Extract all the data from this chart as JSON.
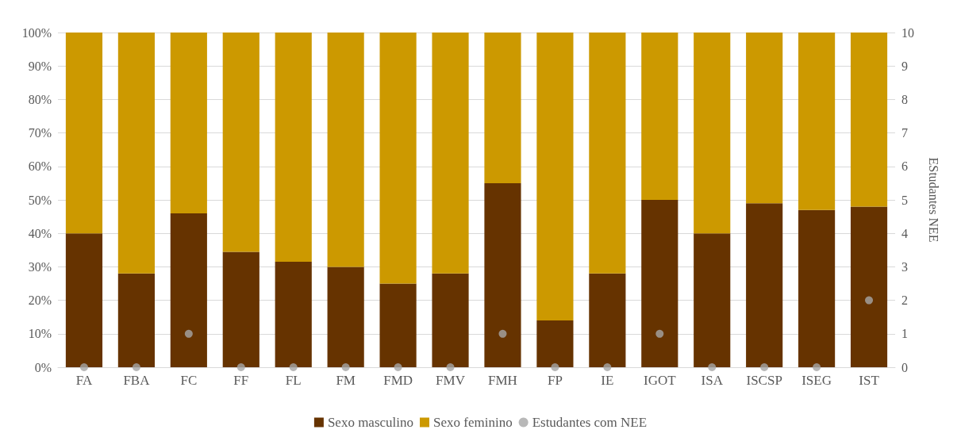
{
  "chart_data": {
    "type": "bar",
    "stacked": true,
    "categories": [
      "FA",
      "FBA",
      "FC",
      "FF",
      "FL",
      "FM",
      "FMD",
      "FMV",
      "FMH",
      "FP",
      "IE",
      "IGOT",
      "ISA",
      "ISCSP",
      "ISEG",
      "IST"
    ],
    "series": [
      {
        "name": "Sexo masculino",
        "color": "#663300",
        "values": [
          40,
          28,
          46,
          34.5,
          31.5,
          30,
          25,
          28,
          55,
          14,
          28,
          50,
          40,
          49,
          47,
          48
        ]
      },
      {
        "name": "Sexo feminino",
        "color": "#cc9900",
        "values": [
          60,
          72,
          54,
          65.5,
          68.5,
          70,
          75,
          72,
          45,
          86,
          72,
          50,
          60,
          51,
          53,
          52
        ]
      },
      {
        "name": "Estudantes com NEE",
        "type": "scatter",
        "axis": "y2",
        "color": "#a6a6a6",
        "x": [
          "FA",
          "FBA",
          "FC",
          "FF",
          "FL",
          "FM",
          "FMD",
          "FMV",
          "FMH",
          "FP",
          "IE",
          "IGOT",
          "ISA",
          "ISCSP",
          "ISEG",
          "IST"
        ],
        "values": [
          0,
          0,
          1,
          0,
          0,
          0,
          0,
          0,
          1,
          0,
          0,
          1,
          0,
          0,
          0,
          2
        ]
      }
    ],
    "ylim": [
      0,
      100
    ],
    "yticks": [
      {
        "value": 0,
        "label": "0%"
      },
      {
        "value": 10,
        "label": "10%"
      },
      {
        "value": 20,
        "label": "20%"
      },
      {
        "value": 30,
        "label": "30%"
      },
      {
        "value": 40,
        "label": "40%"
      },
      {
        "value": 50,
        "label": "50%"
      },
      {
        "value": 60,
        "label": "60%"
      },
      {
        "value": 70,
        "label": "70%"
      },
      {
        "value": 80,
        "label": "80%"
      },
      {
        "value": 90,
        "label": "90%"
      },
      {
        "value": 100,
        "label": "100%"
      }
    ],
    "y2lim": [
      0,
      10
    ],
    "y2ticks": [
      0,
      1,
      2,
      3,
      4,
      5,
      6,
      7,
      8,
      9,
      10
    ],
    "y2label": "EStudantes NEE",
    "grid": "y",
    "legend": "bottom",
    "marker": "circle"
  }
}
